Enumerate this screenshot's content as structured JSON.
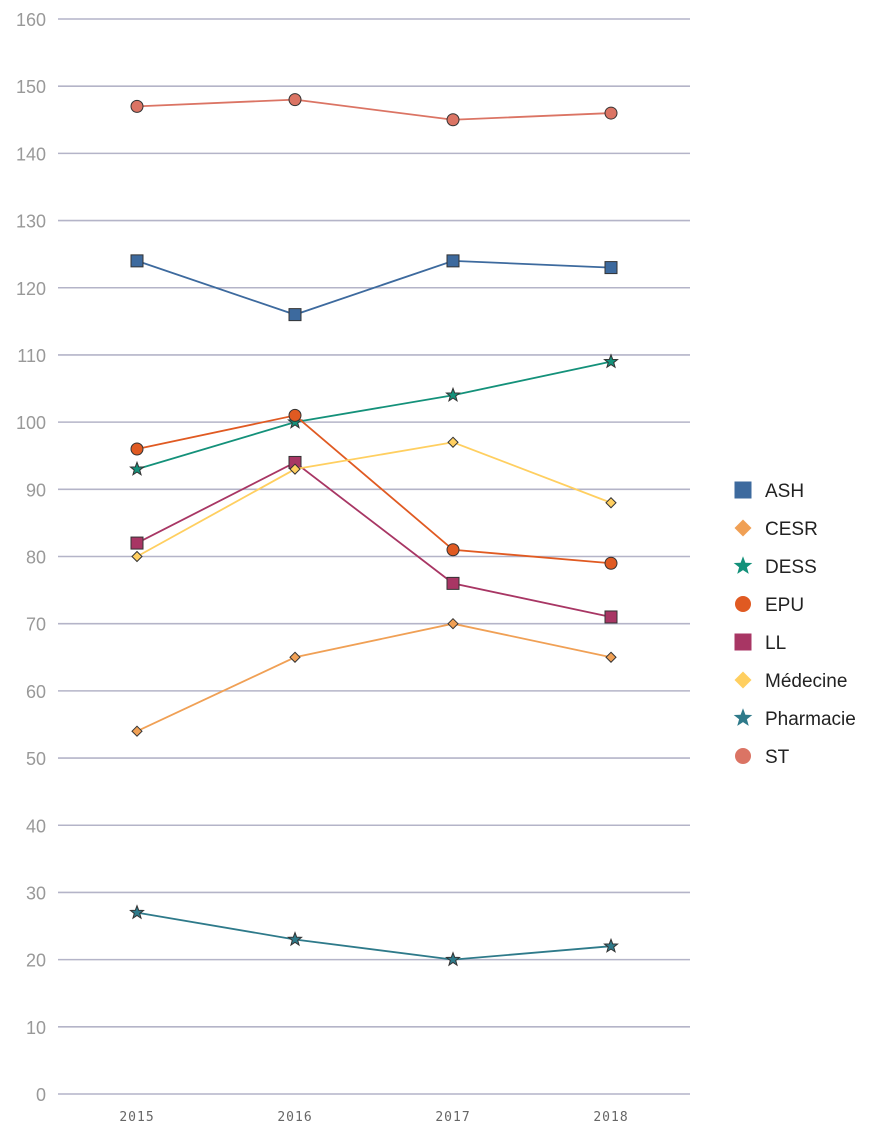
{
  "chart_data": {
    "type": "line",
    "title": "",
    "xlabel": "",
    "ylabel": "",
    "x": [
      "2015",
      "2016",
      "2017",
      "2018"
    ],
    "ylim": [
      0,
      160
    ],
    "yticks": [
      0,
      10,
      20,
      30,
      40,
      50,
      60,
      70,
      80,
      90,
      100,
      110,
      120,
      130,
      140,
      150,
      160
    ],
    "grid": true,
    "legend": "right",
    "series": [
      {
        "name": "ASH",
        "values": [
          124,
          116,
          124,
          123
        ],
        "color": "#3d6a9e",
        "marker": "square"
      },
      {
        "name": "CESR",
        "values": [
          54,
          65,
          70,
          65
        ],
        "color": "#f0a055",
        "marker": "diamond"
      },
      {
        "name": "DESS",
        "values": [
          93,
          100,
          104,
          109
        ],
        "color": "#14917a",
        "marker": "star"
      },
      {
        "name": "EPU",
        "values": [
          96,
          101,
          81,
          79
        ],
        "color": "#e05a22",
        "marker": "circle"
      },
      {
        "name": "LL",
        "values": [
          82,
          94,
          76,
          71
        ],
        "color": "#a83664",
        "marker": "square"
      },
      {
        "name": "Médecine",
        "values": [
          80,
          93,
          97,
          88
        ],
        "color": "#ffcf60",
        "marker": "diamond"
      },
      {
        "name": "Pharmacie",
        "values": [
          27,
          23,
          20,
          22
        ],
        "color": "#2e7a8a",
        "marker": "star"
      },
      {
        "name": "ST",
        "values": [
          147,
          148,
          145,
          146
        ],
        "color": "#db7464",
        "marker": "circle"
      }
    ]
  }
}
